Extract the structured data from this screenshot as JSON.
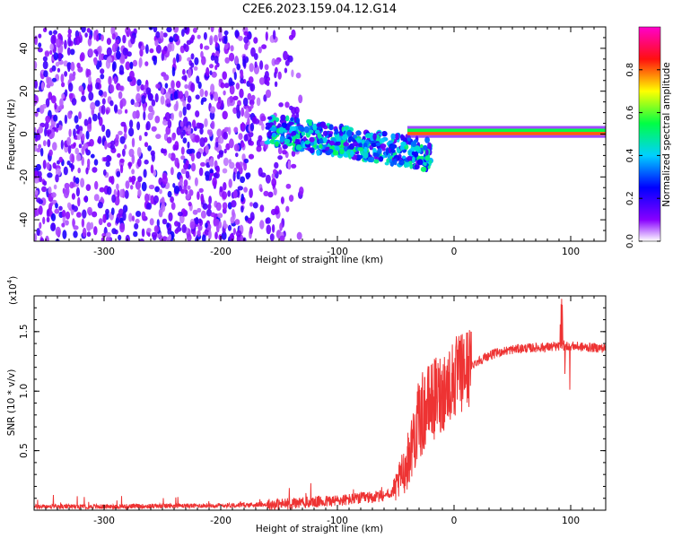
{
  "title": "C2E6.2023.159.04.12.G14",
  "chart_data": [
    {
      "type": "heatmap",
      "xlabel": "Height of straight line (km)",
      "ylabel": "Frequency (Hz)",
      "xlim": [
        -360,
        130
      ],
      "ylim": [
        -50,
        50
      ],
      "xticks": [
        -300,
        -200,
        -100,
        0,
        100
      ],
      "yticks": [
        -40,
        -20,
        0,
        20,
        40
      ],
      "colorbar": {
        "label": "Normalized spectral amplitude",
        "range": [
          0.0,
          1.0
        ],
        "ticks": [
          0.0,
          0.2,
          0.4,
          0.6,
          0.8
        ],
        "colormap": "white-violet-blue-cyan-green-yellow-red-magenta"
      },
      "features": [
        {
          "x_range": [
            -360,
            -170
          ],
          "freq_range": [
            -50,
            50
          ],
          "amplitude": 0.1
        },
        {
          "x_range": [
            -170,
            -130
          ],
          "freq_range": [
            -50,
            50
          ],
          "amplitude": 0.05
        },
        {
          "x_range": [
            -160,
            -20
          ],
          "freq_center_start": 2,
          "freq_center_end": -10,
          "freq_width": 14,
          "amplitude": 0.35
        },
        {
          "x_range": [
            -40,
            130
          ],
          "freq_center": 1,
          "freq_width": 3,
          "amplitude": 0.8
        }
      ]
    },
    {
      "type": "line",
      "xlabel": "Height of straight line (km)",
      "ylabel": "SNR (10 * v/v)",
      "y_multiplier": "(x10",
      "y_multiplier_exp": "4",
      "y_multiplier_close": ")",
      "xlim": [
        -360,
        130
      ],
      "ylim": [
        0,
        1.8
      ],
      "xticks": [
        -300,
        -200,
        -100,
        0,
        100
      ],
      "yticks": [
        0.5,
        1.0,
        1.5
      ],
      "ytick_labels": [
        "0.5",
        "1.0",
        "1.5"
      ],
      "series": [
        {
          "color": "#ee3333",
          "x": [
            -360,
            -300,
            -200,
            -150,
            -100,
            -80,
            -60,
            -50,
            -40,
            -35,
            -30,
            -25,
            -20,
            -15,
            -10,
            -5,
            0,
            10,
            20,
            30,
            40,
            50,
            60,
            80,
            100,
            110,
            130
          ],
          "y": [
            0.03,
            0.03,
            0.04,
            0.05,
            0.08,
            0.1,
            0.12,
            0.18,
            0.4,
            0.6,
            0.75,
            0.85,
            0.9,
            0.95,
            1.0,
            1.05,
            1.1,
            1.18,
            1.25,
            1.3,
            1.33,
            1.35,
            1.36,
            1.37,
            1.38,
            1.37,
            1.36
          ]
        }
      ]
    }
  ]
}
